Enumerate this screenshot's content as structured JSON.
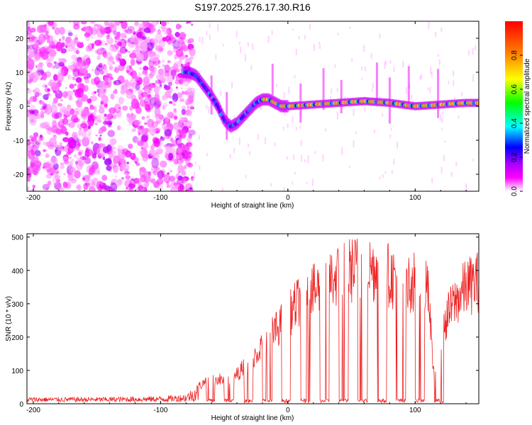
{
  "title": "S197.2025.276.17.30.R16",
  "chart_data": [
    {
      "type": "heatmap",
      "title": "S197.2025.276.17.30.R16",
      "xlabel": "Height of straight line (km)",
      "ylabel": "Frequency (Hz)",
      "xlim": [
        -205,
        150
      ],
      "ylim": [
        -25,
        25
      ],
      "xticks": [
        -200,
        -100,
        0,
        100
      ],
      "yticks": [
        -20,
        -10,
        0,
        10,
        20
      ],
      "colorbar": {
        "label": "Normalized spectral amplitude",
        "ticks": [
          "0.0",
          "0.2",
          "0.4",
          "0.6",
          "0.8"
        ],
        "range": [
          0,
          1
        ],
        "colors": [
          "#ffffff",
          "#ff00ff",
          "#8800ff",
          "#0000ff",
          "#00ffff",
          "#00ff00",
          "#ffff00",
          "#ff8800",
          "#ff0000"
        ]
      },
      "frequency_track": {
        "x": [
          -78,
          -72,
          -66,
          -60,
          -55,
          -50,
          -45,
          -40,
          -35,
          -30,
          -25,
          -20,
          -15,
          -10,
          -5,
          0,
          20,
          40,
          60,
          80,
          100,
          120,
          140,
          150
        ],
        "y": [
          10,
          9,
          6,
          3,
          0,
          -4,
          -6,
          -5,
          -3,
          -1,
          1,
          2,
          2,
          1,
          0,
          0,
          0.5,
          1,
          1.5,
          1,
          0,
          0.5,
          1,
          1
        ]
      }
    },
    {
      "type": "line",
      "xlabel": "Height of straight line (km)",
      "ylabel": "SNR (10 * v/v)",
      "xlim": [
        -205,
        150
      ],
      "ylim": [
        0,
        510
      ],
      "xticks": [
        -200,
        -100,
        0,
        100
      ],
      "yticks": [
        0,
        100,
        200,
        300,
        400,
        500
      ],
      "color": "#ee2222",
      "envelope": {
        "x": [
          -205,
          -150,
          -100,
          -80,
          -70,
          -60,
          -50,
          -40,
          -30,
          -20,
          -10,
          0,
          10,
          20,
          30,
          40,
          50,
          60,
          70,
          80,
          90,
          100,
          110,
          115,
          125,
          130,
          140,
          150
        ],
        "y": [
          15,
          15,
          18,
          25,
          60,
          90,
          80,
          100,
          150,
          200,
          250,
          300,
          360,
          380,
          420,
          440,
          460,
          470,
          460,
          440,
          410,
          420,
          390,
          80,
          300,
          340,
          400,
          420
        ]
      }
    }
  ]
}
